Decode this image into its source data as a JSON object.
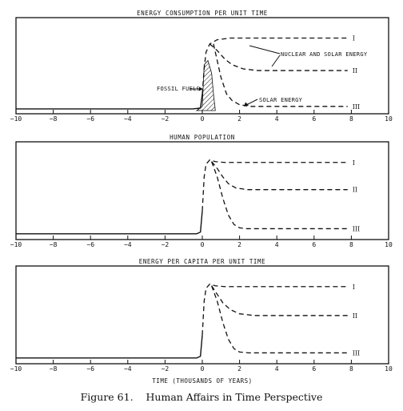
{
  "figure": {
    "caption_number": "Figure 61.",
    "caption_text": "Human Affairs in Time Perspective",
    "xlabel": "TIME (THOUSANDS OF YEARS)"
  },
  "chart_data": [
    {
      "type": "line",
      "title": "ENERGY CONSUMPTION PER UNIT TIME",
      "xlabel": "",
      "ylabel": "",
      "xlim": [
        -10,
        10
      ],
      "x_ticks": [
        -10,
        -8,
        -6,
        -4,
        -2,
        0,
        2,
        4,
        6,
        8,
        10
      ],
      "grid": false,
      "annotations": [
        "NUCLEAR AND SOLAR ENERGY",
        "FOSSIL FUELS",
        "SOLAR ENERGY"
      ],
      "shaded_region": {
        "label": "FOSSIL FUELS",
        "x": [
          -0.3,
          0.0,
          0.1,
          0.3,
          0.5,
          0.6,
          0.7
        ],
        "y": [
          0.0,
          0.05,
          0.55,
          0.6,
          0.45,
          0.2,
          0.0
        ]
      },
      "series": [
        {
          "name": "I",
          "x": [
            -10,
            -0.5,
            -0.1,
            0.0,
            0.1,
            0.2,
            0.4,
            0.8,
            1.5,
            7.8
          ],
          "y": [
            0.02,
            0.02,
            0.03,
            0.2,
            0.5,
            0.7,
            0.8,
            0.85,
            0.87,
            0.87
          ]
        },
        {
          "name": "II",
          "x": [
            0.4,
            0.8,
            1.2,
            1.6,
            2.2,
            3.0,
            7.8
          ],
          "y": [
            0.8,
            0.72,
            0.62,
            0.55,
            0.5,
            0.48,
            0.48
          ]
        },
        {
          "name": "III",
          "x": [
            0.6,
            0.8,
            1.0,
            1.3,
            1.6,
            2.0,
            2.6,
            7.8
          ],
          "y": [
            0.8,
            0.6,
            0.4,
            0.2,
            0.12,
            0.07,
            0.05,
            0.05
          ]
        }
      ]
    },
    {
      "type": "line",
      "title": "HUMAN POPULATION",
      "xlabel": "",
      "ylabel": "",
      "xlim": [
        -10,
        10
      ],
      "x_ticks": [
        -10,
        -8,
        -6,
        -4,
        -2,
        0,
        2,
        4,
        6,
        8,
        10
      ],
      "grid": false,
      "series": [
        {
          "name": "I",
          "x": [
            -10,
            -0.3,
            -0.1,
            0.0,
            0.1,
            0.2,
            0.4,
            0.7,
            1.2,
            7.8
          ],
          "y": [
            0.03,
            0.03,
            0.05,
            0.3,
            0.7,
            0.85,
            0.9,
            0.88,
            0.87,
            0.87
          ]
        },
        {
          "name": "II",
          "x": [
            0.5,
            0.8,
            1.1,
            1.4,
            1.8,
            2.4,
            7.8
          ],
          "y": [
            0.88,
            0.8,
            0.7,
            0.62,
            0.57,
            0.55,
            0.55
          ]
        },
        {
          "name": "III",
          "x": [
            0.5,
            0.8,
            1.1,
            1.4,
            1.7,
            2.0,
            2.4,
            7.8
          ],
          "y": [
            0.88,
            0.7,
            0.45,
            0.25,
            0.14,
            0.1,
            0.09,
            0.09
          ]
        }
      ]
    },
    {
      "type": "line",
      "title": "ENERGY PER CAPITA PER UNIT TIME",
      "xlabel": "",
      "ylabel": "",
      "xlim": [
        -10,
        10
      ],
      "x_ticks": [
        -10,
        -8,
        -6,
        -4,
        -2,
        0,
        2,
        4,
        6,
        8,
        10
      ],
      "grid": false,
      "series": [
        {
          "name": "I",
          "x": [
            -10,
            -0.3,
            -0.1,
            0.0,
            0.1,
            0.2,
            0.4,
            0.7,
            1.2,
            7.8
          ],
          "y": [
            0.03,
            0.03,
            0.05,
            0.3,
            0.7,
            0.85,
            0.9,
            0.88,
            0.87,
            0.87
          ]
        },
        {
          "name": "II",
          "x": [
            0.5,
            0.8,
            1.1,
            1.5,
            2.0,
            2.8,
            7.8
          ],
          "y": [
            0.88,
            0.78,
            0.68,
            0.6,
            0.55,
            0.53,
            0.53
          ]
        },
        {
          "name": "III",
          "x": [
            0.5,
            0.8,
            1.1,
            1.4,
            1.7,
            2.0,
            2.5,
            7.8
          ],
          "y": [
            0.88,
            0.7,
            0.45,
            0.25,
            0.14,
            0.1,
            0.09,
            0.09
          ]
        }
      ]
    }
  ]
}
